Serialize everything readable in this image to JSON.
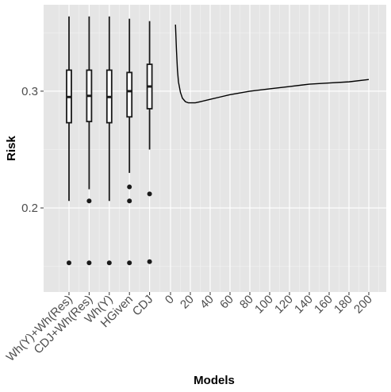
{
  "chart_data": {
    "type": "box+line",
    "xlabel": "Models",
    "ylabel": "Risk",
    "ylim": [
      0.128,
      0.374
    ],
    "y_ticks": [
      0.2,
      0.3
    ],
    "grid": true,
    "background": "#e5e5e5",
    "grid_color": "#ffffff",
    "box_categories": [
      "Wh(Y)+Wh(Res)",
      "CDJ+Wh(Res)",
      "Wh(Y)",
      "HGiven",
      "CDJ"
    ],
    "boxplots": [
      {
        "label": "Wh(Y)+Wh(Res)",
        "whisker_low": 0.206,
        "q1": 0.273,
        "median": 0.295,
        "q3": 0.318,
        "whisker_high": 0.364,
        "outliers": [
          0.153
        ]
      },
      {
        "label": "CDJ+Wh(Res)",
        "whisker_low": 0.216,
        "q1": 0.274,
        "median": 0.296,
        "q3": 0.318,
        "whisker_high": 0.364,
        "outliers": [
          0.206,
          0.153
        ]
      },
      {
        "label": "Wh(Y)",
        "whisker_low": 0.206,
        "q1": 0.273,
        "median": 0.295,
        "q3": 0.318,
        "whisker_high": 0.364,
        "outliers": [
          0.153
        ]
      },
      {
        "label": "HGiven",
        "whisker_low": 0.23,
        "q1": 0.278,
        "median": 0.3,
        "q3": 0.316,
        "whisker_high": 0.362,
        "outliers": [
          0.218,
          0.206,
          0.153
        ]
      },
      {
        "label": "CDJ",
        "whisker_low": 0.25,
        "q1": 0.285,
        "median": 0.304,
        "q3": 0.323,
        "whisker_high": 0.36,
        "outliers": [
          0.212,
          0.154
        ]
      }
    ],
    "line_ticks": [
      0,
      20,
      40,
      60,
      80,
      100,
      120,
      140,
      160,
      180,
      200
    ],
    "line": {
      "x": [
        5,
        6,
        7,
        8,
        10,
        12,
        15,
        18,
        20,
        25,
        30,
        40,
        50,
        60,
        80,
        100,
        120,
        140,
        160,
        180,
        200
      ],
      "y": [
        0.357,
        0.335,
        0.318,
        0.308,
        0.299,
        0.294,
        0.291,
        0.29,
        0.29,
        0.29,
        0.291,
        0.293,
        0.295,
        0.297,
        0.3,
        0.302,
        0.304,
        0.306,
        0.307,
        0.308,
        0.31
      ]
    }
  }
}
